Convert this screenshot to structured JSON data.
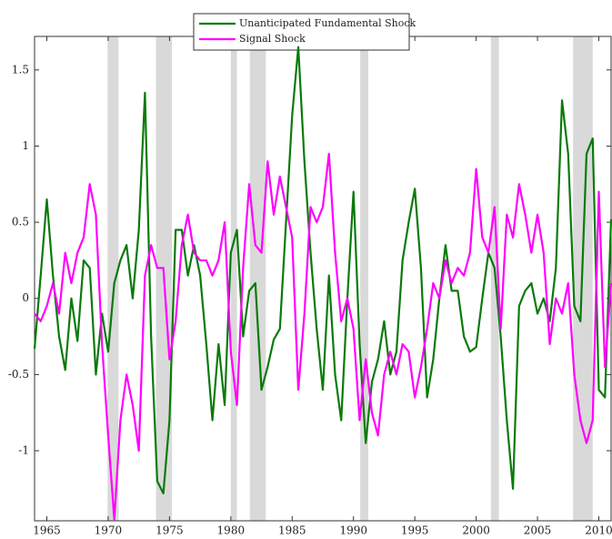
{
  "chart_data": {
    "type": "line",
    "x": [
      1964,
      1964.5,
      1965,
      1965.5,
      1966,
      1966.5,
      1967,
      1967.5,
      1968,
      1968.5,
      1969,
      1969.5,
      1970,
      1970.5,
      1971,
      1971.5,
      1972,
      1972.5,
      1973,
      1973.5,
      1974,
      1974.5,
      1975,
      1975.5,
      1976,
      1976.5,
      1977,
      1977.5,
      1978,
      1978.5,
      1979,
      1979.5,
      1980,
      1980.5,
      1981,
      1981.5,
      1982,
      1982.5,
      1983,
      1983.5,
      1984,
      1984.5,
      1985,
      1985.5,
      1986,
      1986.5,
      1987,
      1987.5,
      1988,
      1988.5,
      1989,
      1989.5,
      1990,
      1990.5,
      1991,
      1991.5,
      1992,
      1992.5,
      1993,
      1993.5,
      1994,
      1994.5,
      1995,
      1995.5,
      1996,
      1996.5,
      1997,
      1997.5,
      1998,
      1998.5,
      1999,
      1999.5,
      2000,
      2000.5,
      2001,
      2001.5,
      2002,
      2002.5,
      2003,
      2003.5,
      2004,
      2004.5,
      2005,
      2005.5,
      2006,
      2006.5,
      2007,
      2007.5,
      2008,
      2008.5,
      2009,
      2009.5,
      2010,
      2010.5,
      2011
    ],
    "series": [
      {
        "name": "Unanticipated Fundamental Shock",
        "color": "#0a7a0a",
        "values": [
          -0.33,
          0.15,
          0.65,
          0.15,
          -0.25,
          -0.47,
          0.0,
          -0.28,
          0.25,
          0.2,
          -0.5,
          -0.1,
          -0.35,
          0.1,
          0.25,
          0.35,
          0.0,
          0.45,
          1.35,
          -0.25,
          -1.2,
          -1.28,
          -0.8,
          0.45,
          0.45,
          0.15,
          0.35,
          0.15,
          -0.3,
          -0.8,
          -0.3,
          -0.7,
          0.3,
          0.45,
          -0.25,
          0.05,
          0.1,
          -0.6,
          -0.45,
          -0.27,
          -0.2,
          0.5,
          1.2,
          1.65,
          0.9,
          0.3,
          -0.2,
          -0.6,
          0.15,
          -0.5,
          -0.8,
          0.0,
          0.7,
          -0.3,
          -0.95,
          -0.55,
          -0.4,
          -0.15,
          -0.5,
          -0.35,
          0.25,
          0.5,
          0.72,
          0.2,
          -0.65,
          -0.4,
          0.0,
          0.35,
          0.05,
          0.05,
          -0.25,
          -0.35,
          -0.32,
          0.0,
          0.3,
          0.2,
          -0.25,
          -0.8,
          -1.25,
          -0.05,
          0.05,
          0.1,
          -0.1,
          0.0,
          -0.15,
          0.2,
          1.3,
          0.95,
          -0.05,
          -0.15,
          0.95,
          1.05,
          -0.6,
          -0.65,
          0.52
        ]
      },
      {
        "name": "Signal Shock",
        "color": "#ff00ff",
        "values": [
          -0.1,
          -0.15,
          -0.05,
          0.1,
          -0.1,
          0.3,
          0.1,
          0.3,
          0.4,
          0.75,
          0.55,
          -0.3,
          -0.9,
          -1.45,
          -0.8,
          -0.5,
          -0.7,
          -1.0,
          0.15,
          0.35,
          0.2,
          0.2,
          -0.4,
          -0.15,
          0.35,
          0.55,
          0.3,
          0.25,
          0.25,
          0.15,
          0.25,
          0.5,
          -0.35,
          -0.7,
          0.2,
          0.75,
          0.35,
          0.3,
          0.9,
          0.55,
          0.8,
          0.6,
          0.4,
          -0.6,
          -0.1,
          0.6,
          0.5,
          0.6,
          0.95,
          0.3,
          -0.15,
          0.0,
          -0.2,
          -0.8,
          -0.4,
          -0.75,
          -0.9,
          -0.5,
          -0.35,
          -0.5,
          -0.3,
          -0.35,
          -0.65,
          -0.45,
          -0.2,
          0.1,
          0.0,
          0.25,
          0.1,
          0.2,
          0.15,
          0.3,
          0.85,
          0.4,
          0.3,
          0.6,
          -0.2,
          0.55,
          0.4,
          0.75,
          0.55,
          0.3,
          0.55,
          0.3,
          -0.3,
          0.0,
          -0.1,
          0.1,
          -0.5,
          -0.8,
          -0.95,
          -0.8,
          0.7,
          -0.45,
          0.1
        ]
      }
    ],
    "shaded_regions": [
      [
        1969.95,
        1970.85
      ],
      [
        1973.9,
        1975.2
      ],
      [
        1980,
        1980.5
      ],
      [
        1981.55,
        1982.85
      ],
      [
        1990.55,
        1991.2
      ],
      [
        2001.2,
        2001.85
      ],
      [
        2007.9,
        2009.5
      ]
    ],
    "shade_color": "#d9d9d9",
    "xlim": [
      1964,
      2011
    ],
    "ylim": [
      -1.46,
      1.72
    ],
    "xticks": [
      1965,
      1970,
      1975,
      1980,
      1985,
      1990,
      1995,
      2000,
      2005,
      2010
    ],
    "yticks": [
      -1,
      -0.5,
      0,
      0.5,
      1,
      1.5
    ],
    "legend": "top"
  }
}
